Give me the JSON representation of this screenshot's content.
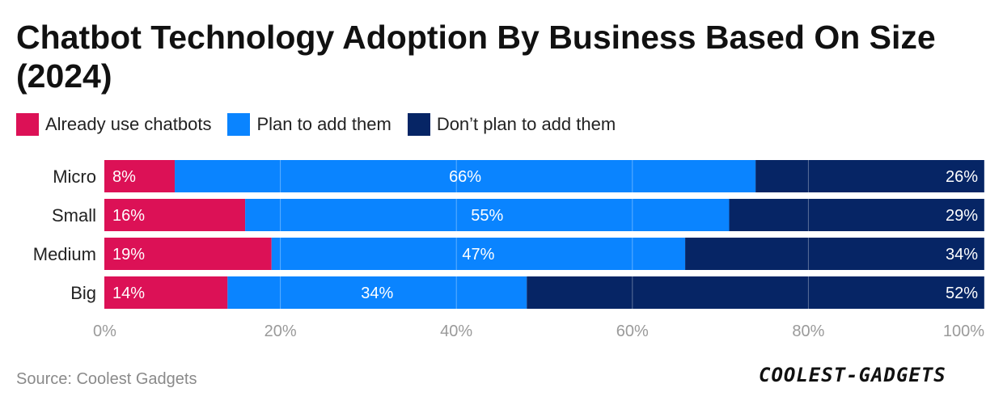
{
  "title": "Chatbot Technology Adoption By Business Based On Size (2024)",
  "legend": [
    {
      "label": "Already use chatbots",
      "color": "#dc1156"
    },
    {
      "label": "Plan to add them",
      "color": "#0a84ff"
    },
    {
      "label": "Don’t plan to add them",
      "color": "#062565"
    }
  ],
  "source": "Source: Coolest Gadgets",
  "logo_text": "COOLEST-GADGETS",
  "chart_data": {
    "type": "bar",
    "orientation": "horizontal",
    "stacked": true,
    "categories": [
      "Micro",
      "Small",
      "Medium",
      "Big"
    ],
    "series": [
      {
        "name": "Already use chatbots",
        "color": "#dc1156",
        "values": [
          8,
          16,
          19,
          14
        ],
        "labels": [
          "8%",
          "16%",
          "19%",
          "14%"
        ]
      },
      {
        "name": "Plan to add them",
        "color": "#0a84ff",
        "values": [
          66,
          55,
          47,
          34
        ],
        "labels": [
          "66%",
          "55%",
          "47%",
          "34%"
        ]
      },
      {
        "name": "Don’t plan to add them",
        "color": "#062565",
        "values": [
          26,
          29,
          34,
          52
        ],
        "labels": [
          "26%",
          "29%",
          "34%",
          "52%"
        ]
      }
    ],
    "xlim": [
      0,
      100
    ],
    "xticks": [
      0,
      20,
      40,
      60,
      80,
      100
    ],
    "xtick_labels": [
      "0%",
      "20%",
      "40%",
      "60%",
      "80%",
      "100%"
    ],
    "grid": true
  }
}
